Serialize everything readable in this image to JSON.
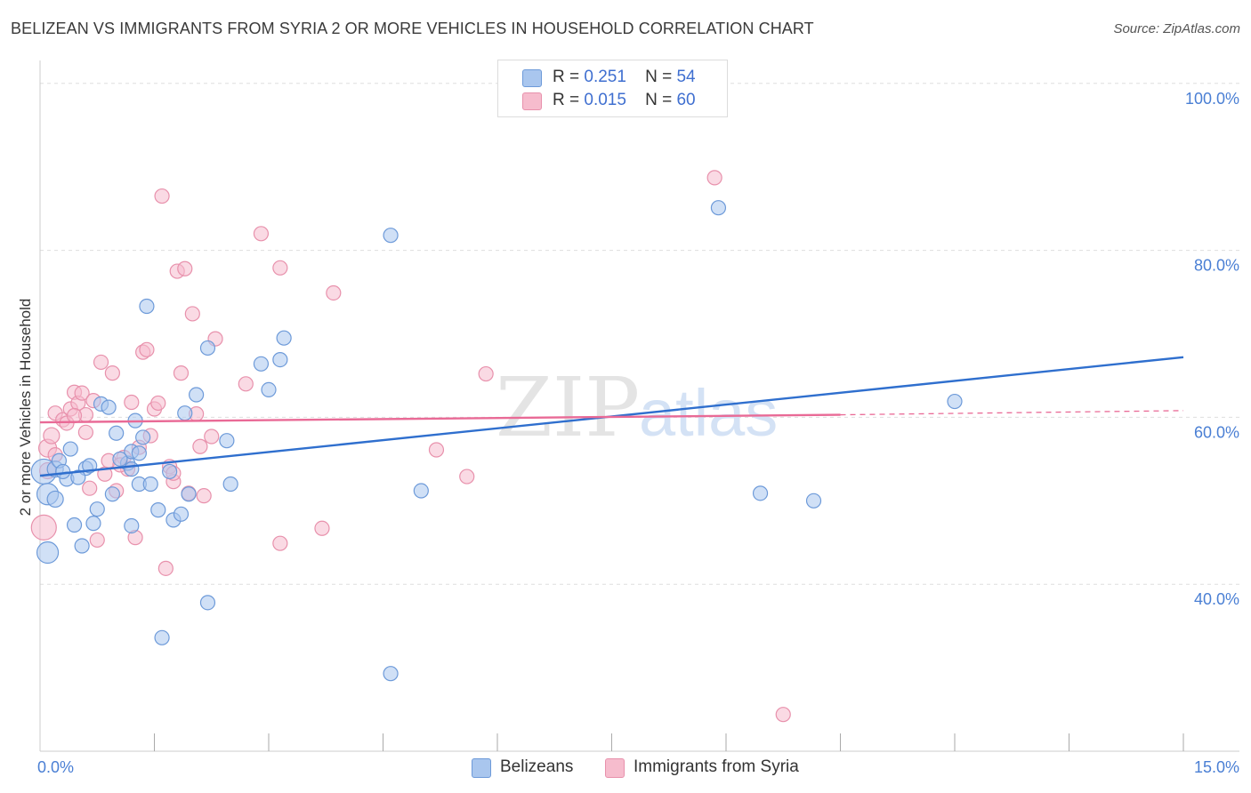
{
  "title": "BELIZEAN VS IMMIGRANTS FROM SYRIA 2 OR MORE VEHICLES IN HOUSEHOLD CORRELATION CHART",
  "source": "Source: ZipAtlas.com",
  "watermark": {
    "zip": "ZIP",
    "atlas": "atlas"
  },
  "colors": {
    "blue_fill": "#a9c6ee",
    "blue_stroke": "#6d9ad9",
    "blue_line": "#2f6fce",
    "pink_fill": "#f6bccd",
    "pink_stroke": "#e891ac",
    "pink_line": "#e96a96",
    "tick_text": "#4a7fd4",
    "grid": "#dedede"
  },
  "legend": {
    "rows": [
      {
        "r_label": "R =",
        "r_value": "0.251",
        "n_label": "N =",
        "n_value": "54"
      },
      {
        "r_label": "R =",
        "r_value": "0.015",
        "n_label": "N =",
        "n_value": "60"
      }
    ]
  },
  "bottom_legend": [
    "Belizeans",
    "Immigrants from Syria"
  ],
  "chart_data": {
    "type": "scatter",
    "title": "BELIZEAN VS IMMIGRANTS FROM SYRIA 2 OR MORE VEHICLES IN HOUSEHOLD CORRELATION CHART",
    "xlabel": "",
    "ylabel": "2 or more Vehicles in Household",
    "xlim": [
      0,
      15
    ],
    "ylim": [
      20,
      102
    ],
    "x_tick_labels": [
      "0.0%",
      "15.0%"
    ],
    "y_ticks": [
      40,
      60,
      80,
      100
    ],
    "y_tick_labels": [
      "40.0%",
      "60.0%",
      "80.0%",
      "100.0%"
    ],
    "series": [
      {
        "name": "Belizeans",
        "r": 0.251,
        "n": 54,
        "trend": {
          "x0": 0.0,
          "y0": 53.0,
          "x1": 15.0,
          "y1": 67.2,
          "dashed_to": null
        },
        "points": [
          [
            0.05,
            53.5,
            14
          ],
          [
            0.1,
            50.8,
            12
          ],
          [
            0.1,
            43.8,
            12
          ],
          [
            0.2,
            50.2,
            9
          ],
          [
            0.2,
            53.8,
            9
          ],
          [
            0.25,
            54.8,
            8
          ],
          [
            0.35,
            52.6,
            8
          ],
          [
            0.4,
            56.2,
            8
          ],
          [
            0.45,
            47.1,
            8
          ],
          [
            0.55,
            44.6,
            8
          ],
          [
            0.6,
            53.9,
            8
          ],
          [
            0.65,
            54.2,
            8
          ],
          [
            0.7,
            47.3,
            8
          ],
          [
            0.75,
            49.0,
            8
          ],
          [
            0.8,
            61.6,
            8
          ],
          [
            0.9,
            61.2,
            8
          ],
          [
            0.95,
            50.8,
            8
          ],
          [
            1.0,
            58.1,
            8
          ],
          [
            1.15,
            54.5,
            8
          ],
          [
            1.2,
            55.9,
            8
          ],
          [
            1.2,
            53.8,
            8
          ],
          [
            1.2,
            47.0,
            8
          ],
          [
            1.25,
            59.6,
            8
          ],
          [
            1.3,
            52.0,
            8
          ],
          [
            1.3,
            55.7,
            8
          ],
          [
            1.35,
            57.6,
            8
          ],
          [
            1.4,
            73.3,
            8
          ],
          [
            1.45,
            52.0,
            8
          ],
          [
            1.55,
            48.9,
            8
          ],
          [
            1.6,
            33.6,
            8
          ],
          [
            1.7,
            53.5,
            8
          ],
          [
            1.75,
            47.7,
            8
          ],
          [
            1.85,
            48.4,
            8
          ],
          [
            1.9,
            60.5,
            8
          ],
          [
            1.95,
            50.8,
            8
          ],
          [
            2.05,
            62.7,
            8
          ],
          [
            2.2,
            68.3,
            8
          ],
          [
            2.2,
            37.8,
            8
          ],
          [
            2.45,
            57.2,
            8
          ],
          [
            2.5,
            52.0,
            8
          ],
          [
            2.9,
            66.4,
            8
          ],
          [
            3.0,
            63.3,
            8
          ],
          [
            3.15,
            66.9,
            8
          ],
          [
            3.2,
            69.5,
            8
          ],
          [
            4.6,
            81.8,
            8
          ],
          [
            4.6,
            29.3,
            8
          ],
          [
            5.0,
            51.2,
            8
          ],
          [
            8.9,
            85.1,
            8
          ],
          [
            9.45,
            50.9,
            8
          ],
          [
            10.15,
            50.0,
            8
          ],
          [
            12.0,
            61.9,
            8
          ],
          [
            0.3,
            53.5,
            8
          ],
          [
            1.05,
            55.0,
            8
          ],
          [
            0.5,
            52.8,
            8
          ]
        ]
      },
      {
        "name": "Immigrants from Syria",
        "r": 0.015,
        "n": 60,
        "trend": {
          "x0": 0.0,
          "y0": 59.4,
          "x1": 10.5,
          "y1": 60.3,
          "dashed_to": {
            "x": 15.0,
            "y": 60.8
          }
        },
        "points": [
          [
            0.05,
            46.8,
            14
          ],
          [
            0.1,
            56.3,
            10
          ],
          [
            0.1,
            53.6,
            9
          ],
          [
            0.15,
            57.8,
            9
          ],
          [
            0.2,
            55.5,
            8
          ],
          [
            0.2,
            60.5,
            8
          ],
          [
            0.3,
            59.7,
            8
          ],
          [
            0.35,
            59.3,
            8
          ],
          [
            0.4,
            61.0,
            8
          ],
          [
            0.45,
            63.0,
            8
          ],
          [
            0.5,
            61.7,
            8
          ],
          [
            0.55,
            62.9,
            8
          ],
          [
            0.6,
            58.2,
            8
          ],
          [
            0.6,
            60.3,
            8
          ],
          [
            0.65,
            51.5,
            8
          ],
          [
            0.7,
            62.0,
            8
          ],
          [
            0.75,
            45.3,
            8
          ],
          [
            0.8,
            66.6,
            8
          ],
          [
            0.85,
            53.2,
            8
          ],
          [
            0.9,
            54.8,
            8
          ],
          [
            0.95,
            65.3,
            8
          ],
          [
            1.0,
            51.2,
            8
          ],
          [
            1.1,
            55.2,
            8
          ],
          [
            1.15,
            53.8,
            8
          ],
          [
            1.2,
            61.8,
            8
          ],
          [
            1.25,
            45.6,
            8
          ],
          [
            1.3,
            56.4,
            8
          ],
          [
            1.35,
            67.8,
            8
          ],
          [
            1.4,
            68.1,
            8
          ],
          [
            1.45,
            57.8,
            8
          ],
          [
            1.5,
            61.0,
            8
          ],
          [
            1.55,
            61.7,
            8
          ],
          [
            1.6,
            86.5,
            8
          ],
          [
            1.65,
            41.9,
            8
          ],
          [
            1.7,
            54.1,
            8
          ],
          [
            1.75,
            52.3,
            8
          ],
          [
            1.8,
            77.5,
            8
          ],
          [
            1.85,
            65.3,
            8
          ],
          [
            1.9,
            77.8,
            8
          ],
          [
            1.95,
            50.9,
            8
          ],
          [
            2.0,
            72.4,
            8
          ],
          [
            2.05,
            60.4,
            8
          ],
          [
            2.1,
            56.5,
            8
          ],
          [
            2.15,
            50.6,
            8
          ],
          [
            2.25,
            57.7,
            8
          ],
          [
            2.3,
            69.4,
            8
          ],
          [
            2.7,
            64.0,
            8
          ],
          [
            2.9,
            82.0,
            8
          ],
          [
            3.15,
            77.9,
            8
          ],
          [
            3.15,
            44.9,
            8
          ],
          [
            3.7,
            46.7,
            8
          ],
          [
            3.85,
            74.9,
            8
          ],
          [
            5.2,
            56.1,
            8
          ],
          [
            5.6,
            52.9,
            8
          ],
          [
            5.85,
            65.2,
            8
          ],
          [
            8.85,
            88.7,
            8
          ],
          [
            9.75,
            24.4,
            8
          ],
          [
            1.05,
            54.3,
            8
          ],
          [
            0.45,
            60.2,
            8
          ],
          [
            1.75,
            53.3,
            8
          ]
        ]
      }
    ]
  }
}
